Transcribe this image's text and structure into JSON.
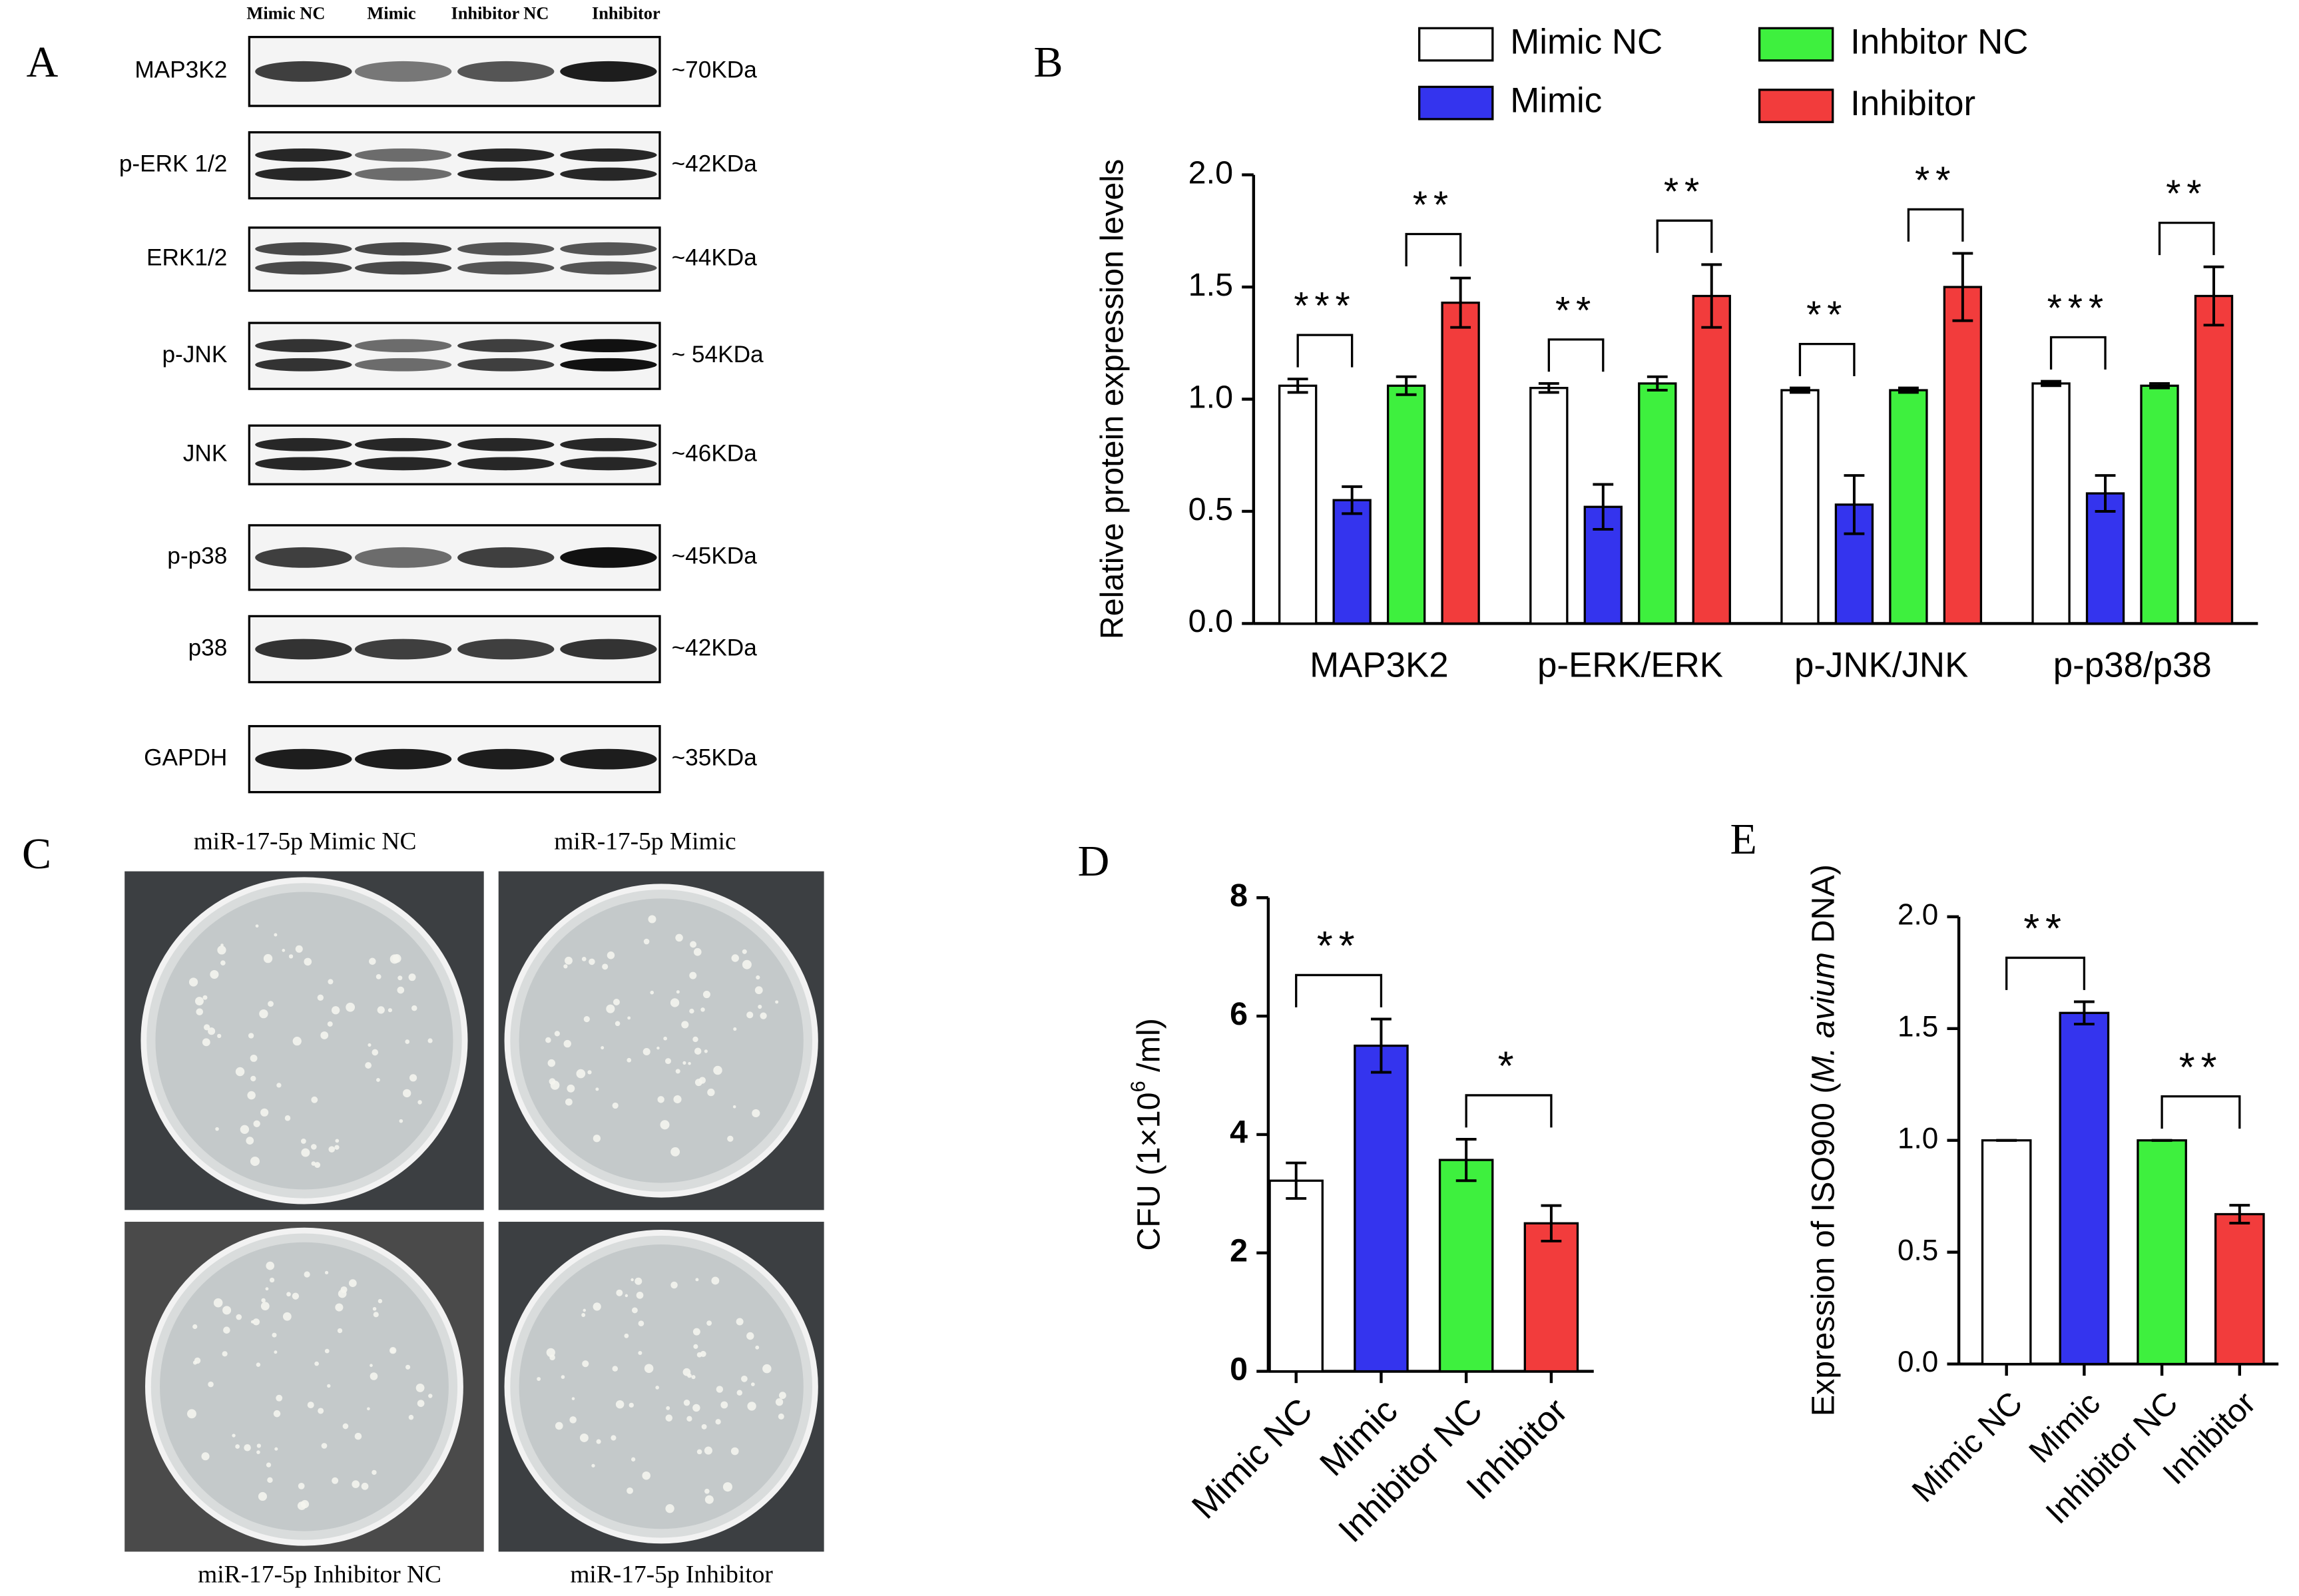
{
  "panel_labels": [
    "A",
    "B",
    "C",
    "D",
    "E"
  ],
  "blot": {
    "lanes": [
      "Mimic NC",
      "Mimic",
      "Inhibitor NC",
      "Inhibitor"
    ],
    "rows": [
      {
        "name": "MAP3K2",
        "size": "~70KDa"
      },
      {
        "name": "p-ERK 1/2",
        "size": "~42KDa"
      },
      {
        "name": "ERK1/2",
        "size": "~44KDa"
      },
      {
        "name": "p-JNK",
        "size": "~ 54KDa"
      },
      {
        "name": "JNK",
        "size": "~46KDa"
      },
      {
        "name": "p-p38",
        "size": "~45KDa"
      },
      {
        "name": "p38",
        "size": "~42KDa"
      },
      {
        "name": "GAPDH",
        "size": "~35KDa"
      }
    ]
  },
  "plates": {
    "labels": [
      "miR-17-5p Mimic NC",
      "miR-17-5p Mimic",
      "miR-17-5p Inhibitor NC",
      "miR-17-5p Inhibitor"
    ]
  },
  "chart_data": [
    {
      "type": "bar",
      "ylabel": "Relative protein expression levels",
      "categories": [
        "MAP3K2",
        "p-ERK/ERK",
        "p-JNK/JNK",
        "p-p38/p38"
      ],
      "series": [
        {
          "name": "Mimic NC",
          "color": "#ffffff",
          "values": [
            1.06,
            1.05,
            1.04,
            1.07
          ],
          "errors": [
            0.03,
            0.02,
            0.01,
            0.01
          ]
        },
        {
          "name": "Mimic",
          "color": "#3434ee",
          "values": [
            0.55,
            0.52,
            0.53,
            0.58
          ],
          "errors": [
            0.06,
            0.1,
            0.13,
            0.08
          ],
          "significance": [
            "***",
            "**",
            "**",
            "***"
          ]
        },
        {
          "name": "Inhbitor NC",
          "color": "#3ef03e",
          "values": [
            1.06,
            1.07,
            1.04,
            1.06
          ],
          "errors": [
            0.04,
            0.03,
            0.01,
            0.01
          ]
        },
        {
          "name": "Inhibitor",
          "color": "#f23c3c",
          "values": [
            1.43,
            1.46,
            1.5,
            1.46
          ],
          "errors": [
            0.11,
            0.14,
            0.15,
            0.13
          ],
          "significance": [
            "**",
            "**",
            "**",
            "**"
          ]
        }
      ],
      "ylim": [
        0,
        2
      ],
      "yticks": [
        {
          "value": 0,
          "label": "0.0"
        },
        {
          "value": 0.5,
          "label": "0.5"
        },
        {
          "value": 1,
          "label": "1.0"
        },
        {
          "value": 1.5,
          "label": "1.5"
        },
        {
          "value": 2,
          "label": "2.0"
        }
      ]
    },
    {
      "type": "bar",
      "ylabel": [
        "CFU (1×10",
        "6",
        " /ml)"
      ],
      "categories": [
        "Mimic NC",
        "Mimic",
        "Inhibitor NC",
        "Inhibitor"
      ],
      "values": [
        3.22,
        5.5,
        3.57,
        2.5
      ],
      "errors": [
        0.3,
        0.45,
        0.35,
        0.3
      ],
      "colors": [
        "#ffffff",
        "#3434ee",
        "#3ef03e",
        "#f23c3c"
      ],
      "significance": [
        "**",
        "*"
      ],
      "ylim": [
        0,
        8
      ],
      "yticks": [
        0,
        2,
        4,
        6,
        8
      ]
    },
    {
      "type": "bar",
      "ylabel": [
        "Expression of ISO900 (",
        "M. avium",
        " DNA)"
      ],
      "categories": [
        "Mimic NC",
        "Mimic",
        "Inhibitor NC",
        "Inhibitor"
      ],
      "values": [
        1,
        1.57,
        1,
        0.67
      ],
      "errors": [
        0,
        0.05,
        0,
        0.04
      ],
      "colors": [
        "#ffffff",
        "#3434ee",
        "#3ef03e",
        "#f23c3c"
      ],
      "significance": [
        "**",
        "**"
      ],
      "ylim": [
        0,
        2
      ],
      "yticks": [
        {
          "value": 0,
          "label": "0.0"
        },
        {
          "value": 0.5,
          "label": "0.5"
        },
        {
          "value": 1,
          "label": "1.0"
        },
        {
          "value": 1.5,
          "label": "1.5"
        },
        {
          "value": 2,
          "label": "2.0"
        }
      ]
    }
  ]
}
